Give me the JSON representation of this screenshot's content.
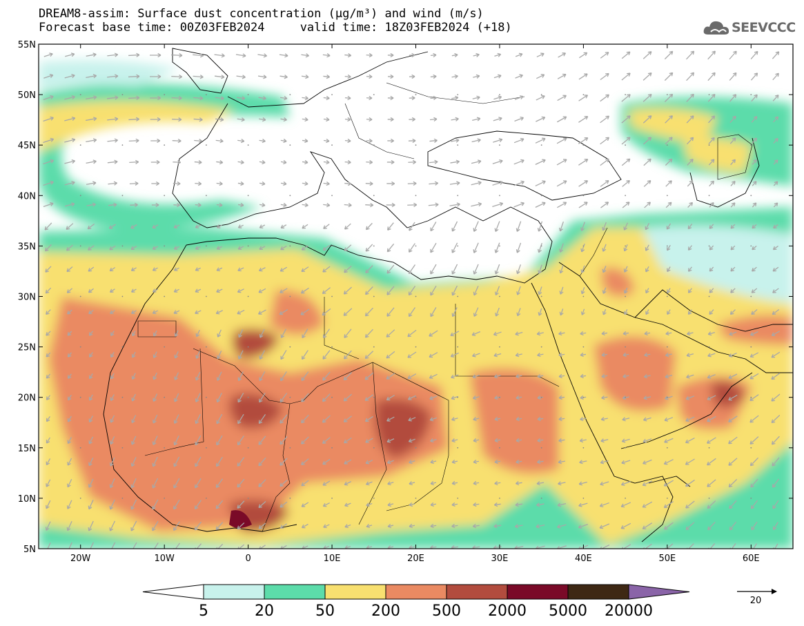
{
  "header": {
    "title_line1": "DREAM8-assim: Surface dust concentration (µg/m³) and wind (m/s)",
    "title_line2": "Forecast base time: 00Z03FEB2024     valid time: 18Z03FEB2024 (+18)",
    "logo_text": "SEEVCCC"
  },
  "map": {
    "lat_labels": [
      "55N",
      "50N",
      "45N",
      "40N",
      "35N",
      "30N",
      "25N",
      "20N",
      "15N",
      "10N",
      "5N"
    ],
    "lon_labels": [
      "20W",
      "10W",
      "0",
      "10E",
      "20E",
      "30E",
      "40E",
      "50E",
      "60E"
    ],
    "lat_range": [
      5,
      55
    ],
    "lon_range": [
      -25,
      65
    ],
    "wind_arrow_color": "#a8a8a8"
  },
  "colorbar": {
    "labels": [
      "5",
      "20",
      "50",
      "200",
      "500",
      "2000",
      "5000",
      "20000"
    ],
    "colors": [
      "#ffffff",
      "#c8f2ec",
      "#5cdcaa",
      "#f8e070",
      "#ea8a62",
      "#b24c3e",
      "#7a0a28",
      "#3e2814",
      "#8a64a8"
    ],
    "under_color": "#ffffff",
    "over_color": "#8a64a8"
  },
  "wind_reference": {
    "label": "20"
  }
}
